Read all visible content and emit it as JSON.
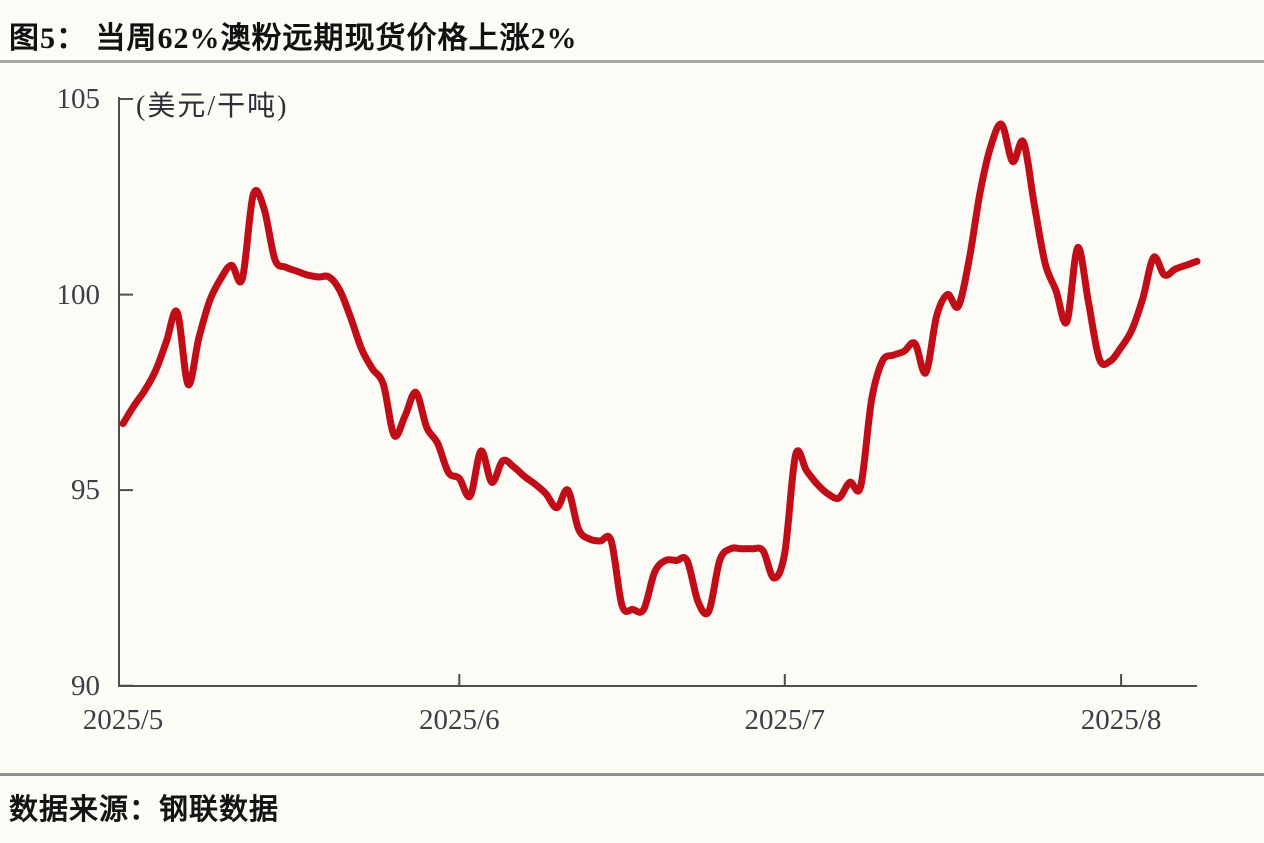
{
  "header": {
    "title": "图5： 当周62%澳粉远期现货价格上涨2%"
  },
  "footer": {
    "source": "数据来源：钢联数据"
  },
  "chart_data": {
    "type": "line",
    "title": "当周62%澳粉远期现货价格上涨2%",
    "series_name": "62%澳粉远期现货价格",
    "unit_label": "(美元/干吨)",
    "ylabel": "美元/干吨",
    "ylim": [
      90,
      105
    ],
    "grid": false,
    "legend": "none",
    "line_color": "#c00d18",
    "axis_color": "#4e4e4e",
    "y_ticks": [
      105,
      100,
      95,
      90
    ],
    "x_ticks": [
      {
        "label": "2025/5",
        "index": 0
      },
      {
        "label": "2025/6",
        "index": 31
      },
      {
        "label": "2025/7",
        "index": 61
      },
      {
        "label": "2025/8",
        "index": 92
      }
    ],
    "x_start": "2025/5/1",
    "x_frequency": "daily",
    "values": [
      96.7,
      97.15,
      97.55,
      98.05,
      98.8,
      99.55,
      97.7,
      98.9,
      99.85,
      100.4,
      100.75,
      100.4,
      102.55,
      102.2,
      100.9,
      100.7,
      100.6,
      100.5,
      100.45,
      100.45,
      100.1,
      99.4,
      98.6,
      98.1,
      97.7,
      96.4,
      96.9,
      97.5,
      96.6,
      96.2,
      95.45,
      95.3,
      94.85,
      96.0,
      95.2,
      95.75,
      95.6,
      95.35,
      95.15,
      94.9,
      94.55,
      95.0,
      94.0,
      93.75,
      93.7,
      93.7,
      92.05,
      91.95,
      91.95,
      92.9,
      93.2,
      93.2,
      93.2,
      92.15,
      91.9,
      93.2,
      93.5,
      93.5,
      93.5,
      93.45,
      92.75,
      93.4,
      95.9,
      95.5,
      95.15,
      94.9,
      94.8,
      95.2,
      95.1,
      97.3,
      98.3,
      98.45,
      98.55,
      98.75,
      98.0,
      99.45,
      100.0,
      99.7,
      100.9,
      102.6,
      103.8,
      104.35,
      103.4,
      103.9,
      102.3,
      100.8,
      100.1,
      99.3,
      101.2,
      99.8,
      98.35,
      98.3,
      98.65,
      99.1,
      99.9,
      100.95,
      100.5,
      100.65,
      100.75,
      100.85
    ]
  }
}
